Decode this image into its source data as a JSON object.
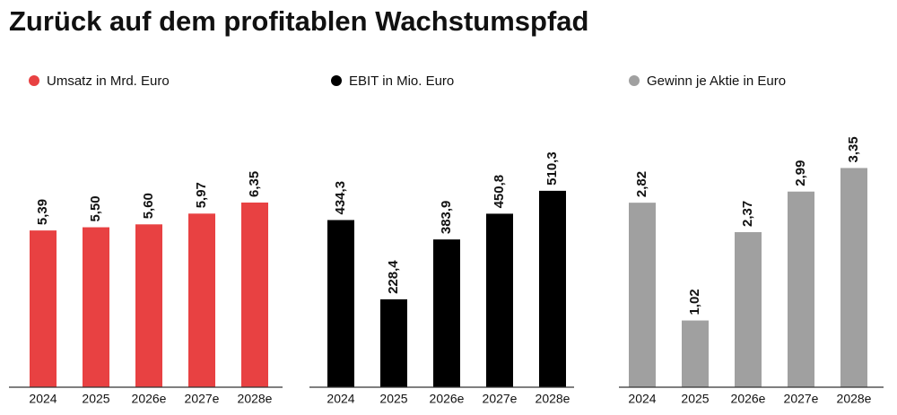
{
  "title": "Zurück auf dem profitablen Wachstumspfad",
  "chart_data": [
    {
      "type": "bar",
      "series": [
        {
          "name": "Umsatz in Mrd. Euro",
          "color": "#e84142",
          "values": [
            5.39,
            5.5,
            5.6,
            5.97,
            6.35
          ],
          "value_labels": [
            "5,39",
            "5,50",
            "5,60",
            "5,97",
            "6,35"
          ]
        }
      ],
      "categories": [
        "2024",
        "2025",
        "2026e",
        "2027e",
        "2028e"
      ],
      "ylim": [
        0,
        9
      ]
    },
    {
      "type": "bar",
      "series": [
        {
          "name": "EBIT in Mio. Euro",
          "color": "#000000",
          "values": [
            434.3,
            228.4,
            383.9,
            450.8,
            510.3
          ],
          "value_labels": [
            "434,3",
            "228,4",
            "383,9",
            "450,8",
            "510,3"
          ]
        }
      ],
      "categories": [
        "2024",
        "2025",
        "2026e",
        "2027e",
        "2028e"
      ],
      "ylim": [
        0,
        680
      ]
    },
    {
      "type": "bar",
      "series": [
        {
          "name": "Gewinn je Aktie in Euro",
          "color": "#a0a0a0",
          "values": [
            2.82,
            1.02,
            2.37,
            2.99,
            3.35
          ],
          "value_labels": [
            "2,82",
            "1,02",
            "2,37",
            "2,99",
            "3,35"
          ]
        }
      ],
      "categories": [
        "2024",
        "2025",
        "2026e",
        "2027e",
        "2028e"
      ],
      "ylim": [
        0,
        4
      ]
    }
  ]
}
